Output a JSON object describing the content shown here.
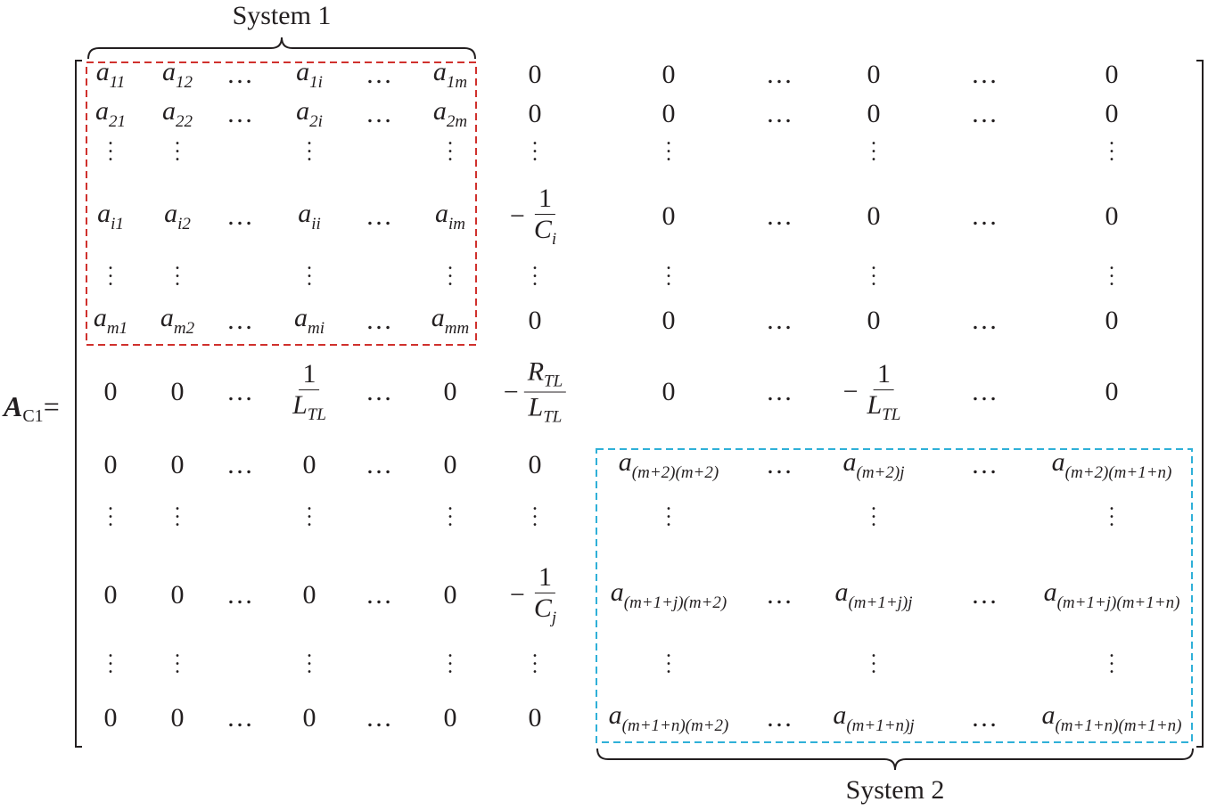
{
  "labels": {
    "system1": "System 1",
    "system2": "System 2"
  },
  "lhs": {
    "symbol": "A",
    "subscript": "C1",
    "equals": "="
  },
  "colors": {
    "ink": "#231f20",
    "system1_box": "#d0312d",
    "system2_box": "#2fb0d8"
  },
  "matrix": {
    "rows": [
      [
        [
          "e",
          "a",
          "11"
        ],
        [
          "e",
          "a",
          "12"
        ],
        [
          "h"
        ],
        [
          "e",
          "a",
          "1i"
        ],
        [
          "h"
        ],
        [
          "e",
          "a",
          "1m"
        ],
        [
          "n",
          "0"
        ],
        [
          "n",
          "0"
        ],
        [
          "h"
        ],
        [
          "n",
          "0"
        ],
        [
          "h"
        ],
        [
          "n",
          "0"
        ]
      ],
      [
        [
          "e",
          "a",
          "21"
        ],
        [
          "e",
          "a",
          "22"
        ],
        [
          "h"
        ],
        [
          "e",
          "a",
          "2i"
        ],
        [
          "h"
        ],
        [
          "e",
          "a",
          "2m"
        ],
        [
          "n",
          "0"
        ],
        [
          "n",
          "0"
        ],
        [
          "h"
        ],
        [
          "n",
          "0"
        ],
        [
          "h"
        ],
        [
          "n",
          "0"
        ]
      ],
      [
        [
          "v"
        ],
        [
          "v"
        ],
        [],
        [
          "v"
        ],
        [],
        [
          "v"
        ],
        [
          "v"
        ],
        [
          "v"
        ],
        [],
        [
          "v"
        ],
        [],
        [
          "v"
        ]
      ],
      [
        [
          "e",
          "a",
          "i1"
        ],
        [
          "e",
          "a",
          "i2"
        ],
        [
          "h"
        ],
        [
          "e",
          "a",
          "ii"
        ],
        [
          "h"
        ],
        [
          "e",
          "a",
          "im"
        ],
        [
          "f",
          "−",
          "1",
          "C",
          "i"
        ],
        [
          "n",
          "0"
        ],
        [
          "h"
        ],
        [
          "n",
          "0"
        ],
        [
          "h"
        ],
        [
          "n",
          "0"
        ]
      ],
      [
        [
          "v"
        ],
        [
          "v"
        ],
        [],
        [
          "v"
        ],
        [],
        [
          "v"
        ],
        [
          "v"
        ],
        [
          "v"
        ],
        [],
        [
          "v"
        ],
        [],
        [
          "v"
        ]
      ],
      [
        [
          "e",
          "a",
          "m1"
        ],
        [
          "e",
          "a",
          "m2"
        ],
        [
          "h"
        ],
        [
          "e",
          "a",
          "mi"
        ],
        [
          "h"
        ],
        [
          "e",
          "a",
          "mm"
        ],
        [
          "n",
          "0"
        ],
        [
          "n",
          "0"
        ],
        [
          "h"
        ],
        [
          "n",
          "0"
        ],
        [
          "h"
        ],
        [
          "n",
          "0"
        ]
      ],
      [
        [
          "n",
          "0"
        ],
        [
          "n",
          "0"
        ],
        [
          "h"
        ],
        [
          "f",
          "",
          "1",
          "L",
          "TL"
        ],
        [
          "h"
        ],
        [
          "n",
          "0"
        ],
        [
          "f",
          "−",
          "R_TL",
          "L",
          "TL"
        ],
        [
          "n",
          "0"
        ],
        [
          "h"
        ],
        [
          "f",
          "−",
          "1",
          "L",
          "TL"
        ],
        [
          "h"
        ],
        [
          "n",
          "0"
        ]
      ],
      [
        [
          "n",
          "0"
        ],
        [
          "n",
          "0"
        ],
        [
          "h"
        ],
        [
          "n",
          "0"
        ],
        [
          "h"
        ],
        [
          "n",
          "0"
        ],
        [
          "n",
          "0"
        ],
        [
          "e",
          "a",
          "(m+2)(m+2)"
        ],
        [
          "h"
        ],
        [
          "e",
          "a",
          "(m+2)j"
        ],
        [
          "h"
        ],
        [
          "e",
          "a",
          "(m+2)(m+1+n)"
        ]
      ],
      [
        [
          "v"
        ],
        [
          "v"
        ],
        [],
        [
          "v"
        ],
        [],
        [
          "v"
        ],
        [
          "v"
        ],
        [
          "v"
        ],
        [],
        [
          "v"
        ],
        [],
        [
          "v"
        ]
      ],
      [
        [
          "n",
          "0"
        ],
        [
          "n",
          "0"
        ],
        [
          "h"
        ],
        [
          "n",
          "0"
        ],
        [
          "h"
        ],
        [
          "n",
          "0"
        ],
        [
          "f",
          "−",
          "1",
          "C",
          "j"
        ],
        [
          "e",
          "a",
          "(m+1+j)(m+2)"
        ],
        [
          "h"
        ],
        [
          "e",
          "a",
          "(m+1+j)j"
        ],
        [
          "h"
        ],
        [
          "e",
          "a",
          "(m+1+j)(m+1+n)"
        ]
      ],
      [
        [
          "v"
        ],
        [
          "v"
        ],
        [],
        [
          "v"
        ],
        [],
        [
          "v"
        ],
        [
          "v"
        ],
        [
          "v"
        ],
        [],
        [
          "v"
        ],
        [],
        [
          "v"
        ]
      ],
      [
        [
          "n",
          "0"
        ],
        [
          "n",
          "0"
        ],
        [
          "h"
        ],
        [
          "n",
          "0"
        ],
        [
          "h"
        ],
        [
          "n",
          "0"
        ],
        [
          "n",
          "0"
        ],
        [
          "e",
          "a",
          "(m+1+n)(m+2)"
        ],
        [
          "h"
        ],
        [
          "e",
          "a",
          "(m+1+n)j"
        ],
        [
          "h"
        ],
        [
          "e",
          "a",
          "(m+1+n)(m+1+n)"
        ]
      ]
    ]
  }
}
